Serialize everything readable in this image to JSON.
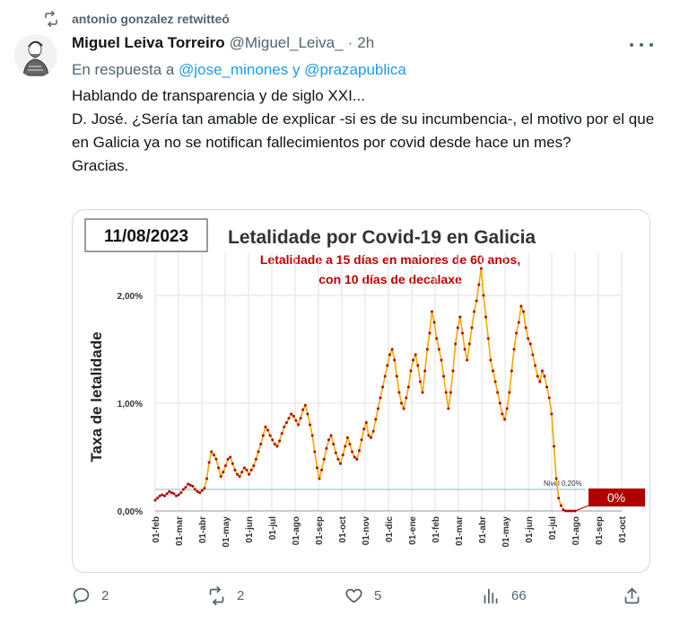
{
  "retweet": {
    "label": "antonio gonzalez retwitteó"
  },
  "tweet": {
    "author_name": "Miguel Leiva Torreiro",
    "handle": "@Miguel_Leiva_",
    "dot": "·",
    "time": "2h",
    "reply_prefix": "En respuesta a",
    "reply_user1": "@jose_minones",
    "reply_and": "y",
    "reply_user2": "@prazapublica",
    "lines": [
      "Hablando de transparencia y de siglo XXI...",
      "D. José. ¿Sería tan amable de explicar -si es de su incumbencia-, el motivo por el que en Galicia ya no se notifican fallecimientos por covid desde hace un mes?",
      "Gracias."
    ]
  },
  "actions": {
    "replies": "2",
    "retweets": "2",
    "likes": "5",
    "views": "66"
  },
  "icons": {
    "retweet": "retweet-icon",
    "more": "more-icon",
    "reply": "reply-icon",
    "like": "heart-icon",
    "views": "views-icon",
    "share": "share-icon"
  },
  "chart_data": {
    "type": "line",
    "date_box": "11/08/2023",
    "title": "Letalidade por Covid-19 en Galicia",
    "subtitle_lines": [
      "Letalidade a 15 días en maiores de 60 anos,",
      "con 10 días de decalaxe"
    ],
    "ylabel": "Taxa de letalidade",
    "ytick_labels": [
      "0,00%",
      "1,00%",
      "2,00%"
    ],
    "ylim": [
      0,
      2.4
    ],
    "x_labels": [
      "01-feb",
      "01-mar",
      "01-abr",
      "01-may",
      "01-jun",
      "01-jul",
      "01-ago",
      "01-sep",
      "01-oct",
      "01-nov",
      "01-dic",
      "01-ene",
      "01-feb",
      "01-mar",
      "01-abr",
      "01-may",
      "01-jun",
      "01-jul",
      "01-ago",
      "01-sep",
      "01-oct"
    ],
    "threshold_label": "Nivel 0,20%",
    "threshold_value": 0.2,
    "final_label": "0%",
    "line_color": "#f5a800",
    "point_color": "#b00000",
    "series": [
      {
        "values": [
          0.1,
          0.12,
          0.14,
          0.15,
          0.14,
          0.16,
          0.18,
          0.17,
          0.16,
          0.14,
          0.15,
          0.17,
          0.2,
          0.22,
          0.25,
          0.24,
          0.23,
          0.2,
          0.18,
          0.17,
          0.19,
          0.21,
          0.3,
          0.45,
          0.55,
          0.52,
          0.48,
          0.4,
          0.32,
          0.36,
          0.42,
          0.48,
          0.5,
          0.44,
          0.38,
          0.34,
          0.32,
          0.36,
          0.4,
          0.38,
          0.34,
          0.38,
          0.42,
          0.48,
          0.55,
          0.62,
          0.7,
          0.78,
          0.75,
          0.7,
          0.66,
          0.62,
          0.6,
          0.65,
          0.72,
          0.78,
          0.82,
          0.86,
          0.9,
          0.88,
          0.84,
          0.8,
          0.86,
          0.94,
          0.98,
          0.9,
          0.8,
          0.7,
          0.55,
          0.4,
          0.3,
          0.38,
          0.48,
          0.58,
          0.66,
          0.7,
          0.62,
          0.54,
          0.48,
          0.44,
          0.52,
          0.6,
          0.68,
          0.62,
          0.55,
          0.5,
          0.48,
          0.56,
          0.66,
          0.76,
          0.82,
          0.7,
          0.68,
          0.74,
          0.85,
          0.95,
          1.05,
          1.15,
          1.25,
          1.35,
          1.45,
          1.5,
          1.4,
          1.25,
          1.1,
          1.0,
          0.95,
          1.05,
          1.15,
          1.3,
          1.4,
          1.45,
          1.35,
          1.2,
          1.1,
          1.3,
          1.5,
          1.65,
          1.85,
          1.75,
          1.6,
          1.5,
          1.4,
          1.25,
          1.1,
          0.95,
          1.1,
          1.3,
          1.55,
          1.7,
          1.8,
          1.65,
          1.5,
          1.4,
          1.55,
          1.7,
          1.85,
          1.95,
          2.1,
          2.25,
          2.0,
          1.8,
          1.6,
          1.4,
          1.3,
          1.2,
          1.1,
          1.0,
          0.9,
          0.85,
          0.95,
          1.1,
          1.3,
          1.5,
          1.65,
          1.75,
          1.9,
          1.85,
          1.7,
          1.6,
          1.55,
          1.45,
          1.35,
          1.25,
          1.2,
          1.3,
          1.25,
          1.15,
          1.05,
          0.9,
          0.6,
          0.3,
          0.12,
          0.05,
          0.01,
          0.0,
          0.0,
          0.0,
          0.0,
          0.0
        ]
      }
    ]
  }
}
